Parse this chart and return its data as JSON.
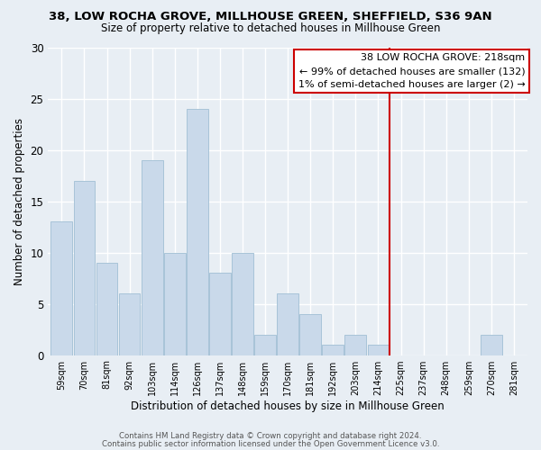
{
  "title1": "38, LOW ROCHA GROVE, MILLHOUSE GREEN, SHEFFIELD, S36 9AN",
  "title2": "Size of property relative to detached houses in Millhouse Green",
  "xlabel": "Distribution of detached houses by size in Millhouse Green",
  "ylabel": "Number of detached properties",
  "bin_labels": [
    "59sqm",
    "70sqm",
    "81sqm",
    "92sqm",
    "103sqm",
    "114sqm",
    "126sqm",
    "137sqm",
    "148sqm",
    "159sqm",
    "170sqm",
    "181sqm",
    "192sqm",
    "203sqm",
    "214sqm",
    "225sqm",
    "237sqm",
    "248sqm",
    "259sqm",
    "270sqm",
    "281sqm"
  ],
  "bar_heights": [
    13,
    17,
    9,
    6,
    19,
    10,
    24,
    8,
    10,
    2,
    6,
    4,
    1,
    2,
    1,
    0,
    0,
    0,
    0,
    2,
    0
  ],
  "bar_color": "#c9d9ea",
  "bar_edge_color": "#a8c4d8",
  "vline_x": 14.5,
  "vline_color": "#cc0000",
  "annotation_title": "38 LOW ROCHA GROVE: 218sqm",
  "annotation_line1": "← 99% of detached houses are smaller (132)",
  "annotation_line2": "1% of semi-detached houses are larger (2) →",
  "annotation_box_color": "#ffffff",
  "annotation_box_edge": "#cc0000",
  "ylim": [
    0,
    30
  ],
  "yticks": [
    0,
    5,
    10,
    15,
    20,
    25,
    30
  ],
  "footer1": "Contains HM Land Registry data © Crown copyright and database right 2024.",
  "footer2": "Contains public sector information licensed under the Open Government Licence v3.0.",
  "background_color": "#e8eef4"
}
